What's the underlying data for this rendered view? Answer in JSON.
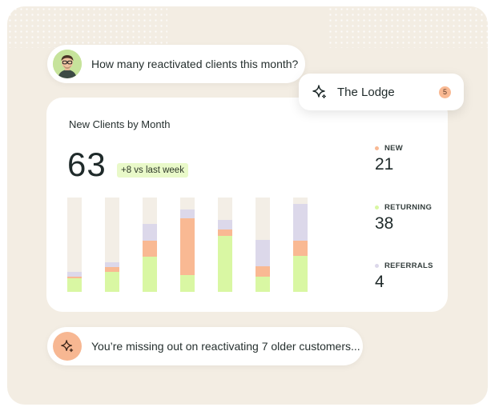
{
  "colors": {
    "background": "#f3ede3",
    "bar_track": "#f3eee6",
    "new": "#f9b993",
    "returning": "#d9f7a3",
    "referrals": "#dcd8ea"
  },
  "question": {
    "avatar_icon": "user-avatar",
    "text": "How many reactivated clients this month?"
  },
  "workspace": {
    "icon": "sparkle-icon",
    "name": "The Lodge",
    "badge": "5"
  },
  "card": {
    "title": "New Clients by Month",
    "total": "63",
    "delta": "+8 vs last week"
  },
  "chart_data": {
    "type": "bar",
    "stacked": true,
    "categories": [
      "",
      "",
      "",
      "",
      "",
      "",
      ""
    ],
    "series": [
      {
        "key": "returning",
        "values": [
          14,
          21,
          37,
          18,
          59,
          16,
          38
        ]
      },
      {
        "key": "new",
        "values": [
          2,
          5,
          17,
          60,
          7,
          11,
          16
        ]
      },
      {
        "key": "referrals",
        "values": [
          5,
          5,
          18,
          9,
          10,
          28,
          39
        ]
      }
    ],
    "ylim": [
      0,
      100
    ],
    "title": "",
    "xlabel": "",
    "ylabel": ""
  },
  "stats": [
    {
      "label": "NEW",
      "value": "21",
      "color": "#f9b993"
    },
    {
      "label": "RETURNING",
      "value": "38",
      "color": "#d9f7a3"
    },
    {
      "label": "REFERRALS",
      "value": "4",
      "color": "#dcd8ea"
    }
  ],
  "suggestion": {
    "icon": "sparkle-icon",
    "text": "You’re missing out on reactivating 7 older customers..."
  }
}
